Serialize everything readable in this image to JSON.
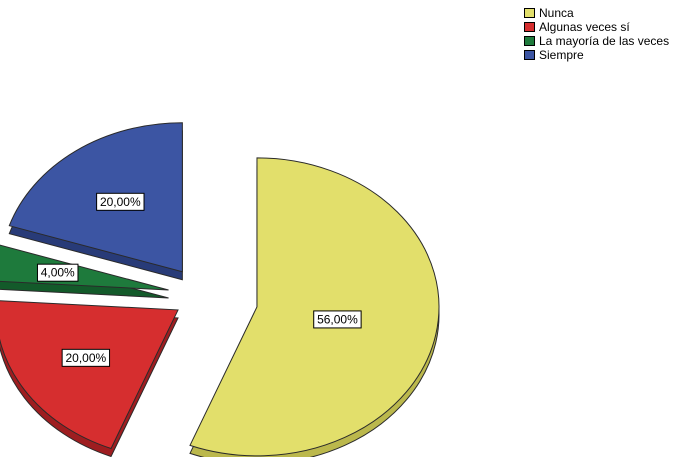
{
  "chart_data": {
    "type": "pie",
    "title": "",
    "categories": [
      "Nunca",
      "Algunas veces sí",
      "La mayoría de las veces",
      "Siempre"
    ],
    "values": [
      56.0,
      20.0,
      4.0,
      20.0
    ],
    "data_labels": [
      "56,00%",
      "20,00%",
      "4,00%",
      "20,00%"
    ],
    "colors": [
      "#e2df6b",
      "#d62e2f",
      "#1e7a3c",
      "#3c55a3"
    ],
    "side_colors": [
      "#bbb84c",
      "#9e1d20",
      "#135a2a",
      "#283b78"
    ],
    "legend_position": "top-right",
    "style": "3d-exploded"
  },
  "legend": {
    "items": [
      {
        "label": "Nunca"
      },
      {
        "label": "Algunas veces sí"
      },
      {
        "label": "La mayoría de las veces"
      },
      {
        "label": "Siempre"
      }
    ]
  }
}
